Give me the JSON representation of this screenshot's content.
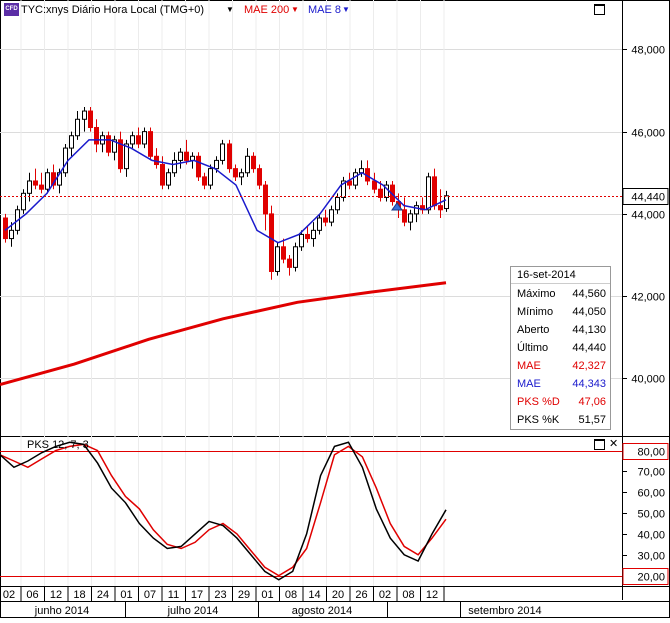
{
  "header": {
    "badge": "CFD",
    "symbol_label": "TYC:xnys Diário Hora Local (TMG+0)",
    "mae200_label": "MAE 200",
    "mae8_label": "MAE 8"
  },
  "colors": {
    "red": "#e00000",
    "blue": "#1a1acc",
    "black": "#000000",
    "grid": "#dcdcdc"
  },
  "price_axis": {
    "ticks": [
      "48,000",
      "46,000",
      "44,000",
      "42,000",
      "40,000"
    ],
    "last_price": "44,440"
  },
  "oscillator": {
    "title": "PKS 12, 7, 3",
    "ticks": [
      "80,00",
      "70,00",
      "60,00",
      "50,00",
      "40,00",
      "30,00",
      "20,00"
    ],
    "upper_band": "80,00",
    "lower_band": "20,00"
  },
  "date_axis": {
    "days": [
      "02",
      "06",
      "12",
      "18",
      "24",
      "01",
      "07",
      "11",
      "17",
      "23",
      "29",
      "01",
      "08",
      "14",
      "20",
      "26",
      "02",
      "08",
      "12"
    ],
    "months": [
      "junho 2014",
      "julho 2014",
      "agosto 2014",
      "setembro 2014"
    ]
  },
  "info_panel": {
    "date": "16-set-2014",
    "rows": [
      {
        "label": "Máximo",
        "value": "44,560",
        "color": "#000000"
      },
      {
        "label": "Mínimo",
        "value": "44,050",
        "color": "#000000"
      },
      {
        "label": "Aberto",
        "value": "44,130",
        "color": "#000000"
      },
      {
        "label": "Último",
        "value": "44,440",
        "color": "#000000"
      },
      {
        "label": "MAE",
        "value": "42,327",
        "color": "#e00000"
      },
      {
        "label": "MAE",
        "value": "44,343",
        "color": "#1a1acc"
      },
      {
        "label": "PKS %D",
        "value": "47,06",
        "color": "#e00000"
      },
      {
        "label": "PKS %K",
        "value": "51,57",
        "color": "#000000"
      }
    ]
  },
  "chart_data": {
    "type": "candlestick",
    "title": "TYC:xnys Diário Hora Local (TMG+0)",
    "price_ylim": [
      38.6,
      49.2
    ],
    "oscillator_ylim": [
      15,
      87
    ],
    "candles_ohlc": [
      [
        43.9,
        44.0,
        43.3,
        43.4
      ],
      [
        43.4,
        43.8,
        43.2,
        43.6
      ],
      [
        43.6,
        44.2,
        43.5,
        44.1
      ],
      [
        44.1,
        44.6,
        44.0,
        44.5
      ],
      [
        44.5,
        45.0,
        44.3,
        44.8
      ],
      [
        44.8,
        45.1,
        44.6,
        44.7
      ],
      [
        44.7,
        45.0,
        44.5,
        44.6
      ],
      [
        44.6,
        45.1,
        44.5,
        45.0
      ],
      [
        45.0,
        45.2,
        44.6,
        44.7
      ],
      [
        44.7,
        45.1,
        44.5,
        45.0
      ],
      [
        45.0,
        45.7,
        44.9,
        45.6
      ],
      [
        45.6,
        46.0,
        45.4,
        45.9
      ],
      [
        45.9,
        46.5,
        45.8,
        46.3
      ],
      [
        46.3,
        46.6,
        46.0,
        46.5
      ],
      [
        46.5,
        46.6,
        46.0,
        46.1
      ],
      [
        46.1,
        46.3,
        45.5,
        45.7
      ],
      [
        45.7,
        46.0,
        45.5,
        45.9
      ],
      [
        45.9,
        46.0,
        45.4,
        45.5
      ],
      [
        45.5,
        45.9,
        45.3,
        45.8
      ],
      [
        45.8,
        46.0,
        45.0,
        45.1
      ],
      [
        45.1,
        45.8,
        44.9,
        45.7
      ],
      [
        45.7,
        46.0,
        45.6,
        45.9
      ],
      [
        45.9,
        46.1,
        45.6,
        45.7
      ],
      [
        45.7,
        46.1,
        45.6,
        46.0
      ],
      [
        46.0,
        46.1,
        45.3,
        45.4
      ],
      [
        45.4,
        45.6,
        45.1,
        45.2
      ],
      [
        45.2,
        45.4,
        44.6,
        44.7
      ],
      [
        44.7,
        45.1,
        44.6,
        45.0
      ],
      [
        45.0,
        45.5,
        44.9,
        45.3
      ],
      [
        45.3,
        45.6,
        45.1,
        45.5
      ],
      [
        45.5,
        45.8,
        45.2,
        45.3
      ],
      [
        45.3,
        45.5,
        45.1,
        45.4
      ],
      [
        45.4,
        45.5,
        44.8,
        44.9
      ],
      [
        44.9,
        45.0,
        44.6,
        44.7
      ],
      [
        44.7,
        45.2,
        44.6,
        45.1
      ],
      [
        45.1,
        45.4,
        45.0,
        45.3
      ],
      [
        45.3,
        45.8,
        45.2,
        45.7
      ],
      [
        45.7,
        45.8,
        45.0,
        45.1
      ],
      [
        45.1,
        45.2,
        44.8,
        44.9
      ],
      [
        44.9,
        45.1,
        44.7,
        45.0
      ],
      [
        45.0,
        45.6,
        44.9,
        45.4
      ],
      [
        45.4,
        45.5,
        45.0,
        45.1
      ],
      [
        45.1,
        45.2,
        44.6,
        44.7
      ],
      [
        44.7,
        44.8,
        43.6,
        44.0
      ],
      [
        44.0,
        44.2,
        42.4,
        42.6
      ],
      [
        42.6,
        43.3,
        42.5,
        43.2
      ],
      [
        43.2,
        43.4,
        42.8,
        42.9
      ],
      [
        42.9,
        43.0,
        42.5,
        42.7
      ],
      [
        42.7,
        43.3,
        42.6,
        43.2
      ],
      [
        43.2,
        43.6,
        43.1,
        43.5
      ],
      [
        43.5,
        43.7,
        43.3,
        43.4
      ],
      [
        43.4,
        43.8,
        43.2,
        43.6
      ],
      [
        43.6,
        44.0,
        43.5,
        43.9
      ],
      [
        43.9,
        44.1,
        43.7,
        43.8
      ],
      [
        43.8,
        44.2,
        43.7,
        44.1
      ],
      [
        44.1,
        44.5,
        44.0,
        44.4
      ],
      [
        44.4,
        44.9,
        44.3,
        44.8
      ],
      [
        44.8,
        45.0,
        44.6,
        44.7
      ],
      [
        44.7,
        45.1,
        44.6,
        45.0
      ],
      [
        45.0,
        45.3,
        44.9,
        45.1
      ],
      [
        45.1,
        45.3,
        44.7,
        44.8
      ],
      [
        44.8,
        45.0,
        44.5,
        44.6
      ],
      [
        44.6,
        44.8,
        44.3,
        44.4
      ],
      [
        44.4,
        44.8,
        44.3,
        44.7
      ],
      [
        44.7,
        44.8,
        44.2,
        44.3
      ],
      [
        44.3,
        44.5,
        43.9,
        44.1
      ],
      [
        44.1,
        44.4,
        43.7,
        43.8
      ],
      [
        43.8,
        44.1,
        43.6,
        44.0
      ],
      [
        44.0,
        44.3,
        43.8,
        44.2
      ],
      [
        44.2,
        44.4,
        44.0,
        44.1
      ],
      [
        44.1,
        45.0,
        44.0,
        44.9
      ],
      [
        44.9,
        45.1,
        44.1,
        44.2
      ],
      [
        44.2,
        44.6,
        43.9,
        44.1
      ],
      [
        44.13,
        44.56,
        44.05,
        44.44
      ]
    ],
    "series": [
      {
        "name": "MAE 200",
        "color": "#e00000",
        "values": [
          39.85,
          40.35,
          40.95,
          41.45,
          41.85,
          42.1,
          42.327
        ]
      },
      {
        "name": "MAE 8",
        "color": "#1a1acc",
        "values": [
          43.6,
          44.0,
          44.5,
          45.3,
          45.8,
          45.8,
          45.6,
          45.3,
          45.2,
          45.3,
          45.1,
          44.7,
          43.6,
          43.3,
          43.5,
          44.0,
          44.7,
          45.0,
          44.7,
          44.2,
          44.1,
          44.343
        ]
      },
      {
        "name": "PKS %D",
        "color": "#e00000",
        "values": [
          78,
          75,
          72,
          76,
          80,
          82,
          83,
          80,
          68,
          58,
          52,
          42,
          35,
          33,
          36,
          42,
          45,
          40,
          32,
          24,
          20,
          24,
          33,
          55,
          78,
          82,
          77,
          62,
          45,
          34,
          30,
          38,
          47.06
        ]
      },
      {
        "name": "PKS %K",
        "color": "#000000",
        "values": [
          78,
          72,
          75,
          79,
          82,
          84,
          83,
          74,
          62,
          55,
          45,
          38,
          33,
          34,
          40,
          46,
          44,
          38,
          30,
          22,
          18,
          22,
          40,
          68,
          82,
          84,
          72,
          52,
          38,
          30,
          27,
          40,
          51.57
        ]
      }
    ],
    "xlabel": "",
    "ylabel": ""
  }
}
